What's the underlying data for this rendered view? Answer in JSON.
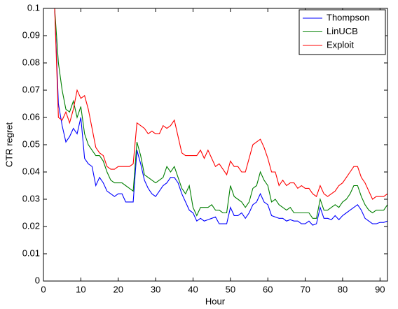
{
  "chart_data": {
    "type": "line",
    "xlabel": "Hour",
    "ylabel": "CTR regret",
    "x": [
      2,
      3,
      4,
      5,
      6,
      7,
      8,
      9,
      10,
      11,
      12,
      13,
      14,
      15,
      16,
      17,
      18,
      19,
      20,
      21,
      22,
      23,
      24,
      25,
      26,
      27,
      28,
      29,
      30,
      31,
      32,
      33,
      34,
      35,
      36,
      37,
      38,
      39,
      40,
      41,
      42,
      43,
      44,
      45,
      46,
      47,
      48,
      49,
      50,
      51,
      52,
      53,
      54,
      55,
      56,
      57,
      58,
      59,
      60,
      61,
      62,
      63,
      64,
      65,
      66,
      67,
      68,
      69,
      70,
      71,
      72,
      73,
      74,
      75,
      76,
      77,
      78,
      79,
      80,
      81,
      82,
      83,
      84,
      85,
      86,
      87,
      88,
      89,
      90,
      91,
      92
    ],
    "series": [
      {
        "name": "Thompson",
        "color": "#0000ff",
        "values": [
          0.12,
          0.1,
          0.065,
          0.057,
          0.051,
          0.053,
          0.056,
          0.054,
          0.06,
          0.045,
          0.043,
          0.042,
          0.035,
          0.038,
          0.036,
          0.033,
          0.032,
          0.031,
          0.032,
          0.032,
          0.029,
          0.029,
          0.029,
          0.048,
          0.043,
          0.037,
          0.034,
          0.032,
          0.031,
          0.033,
          0.035,
          0.036,
          0.038,
          0.038,
          0.036,
          0.032,
          0.029,
          0.026,
          0.025,
          0.022,
          0.023,
          0.022,
          0.0225,
          0.023,
          0.0235,
          0.021,
          0.021,
          0.021,
          0.027,
          0.024,
          0.024,
          0.025,
          0.023,
          0.025,
          0.028,
          0.029,
          0.032,
          0.029,
          0.028,
          0.024,
          0.0235,
          0.023,
          0.023,
          0.022,
          0.0225,
          0.022,
          0.022,
          0.021,
          0.021,
          0.022,
          0.0205,
          0.021,
          0.027,
          0.023,
          0.023,
          0.0225,
          0.024,
          0.0225,
          0.024,
          0.025,
          0.026,
          0.027,
          0.028,
          0.026,
          0.023,
          0.022,
          0.021,
          0.021,
          0.0215,
          0.0215,
          0.022
        ]
      },
      {
        "name": "LinUCB",
        "color": "#007f00",
        "values": [
          0.12,
          0.1,
          0.08,
          0.07,
          0.063,
          0.062,
          0.066,
          0.06,
          0.064,
          0.054,
          0.05,
          0.048,
          0.046,
          0.046,
          0.044,
          0.04,
          0.037,
          0.036,
          0.036,
          0.036,
          0.035,
          0.034,
          0.033,
          0.051,
          0.046,
          0.039,
          0.038,
          0.037,
          0.036,
          0.037,
          0.038,
          0.042,
          0.04,
          0.042,
          0.038,
          0.034,
          0.032,
          0.035,
          0.027,
          0.024,
          0.027,
          0.027,
          0.027,
          0.028,
          0.026,
          0.026,
          0.025,
          0.025,
          0.035,
          0.031,
          0.03,
          0.029,
          0.027,
          0.029,
          0.034,
          0.035,
          0.04,
          0.037,
          0.035,
          0.029,
          0.03,
          0.028,
          0.027,
          0.026,
          0.027,
          0.025,
          0.025,
          0.025,
          0.025,
          0.025,
          0.023,
          0.023,
          0.03,
          0.026,
          0.026,
          0.027,
          0.028,
          0.027,
          0.029,
          0.03,
          0.032,
          0.035,
          0.035,
          0.031,
          0.028,
          0.026,
          0.025,
          0.026,
          0.026,
          0.026,
          0.028
        ]
      },
      {
        "name": "Exploit",
        "color": "#ff0000",
        "values": [
          0.12,
          0.1,
          0.06,
          0.059,
          0.062,
          0.058,
          0.063,
          0.07,
          0.067,
          0.068,
          0.063,
          0.056,
          0.049,
          0.047,
          0.046,
          0.042,
          0.041,
          0.041,
          0.042,
          0.042,
          0.042,
          0.042,
          0.043,
          0.058,
          0.057,
          0.056,
          0.054,
          0.055,
          0.054,
          0.054,
          0.057,
          0.056,
          0.057,
          0.059,
          0.053,
          0.047,
          0.046,
          0.046,
          0.046,
          0.046,
          0.048,
          0.045,
          0.048,
          0.045,
          0.042,
          0.043,
          0.041,
          0.039,
          0.044,
          0.042,
          0.042,
          0.04,
          0.04,
          0.045,
          0.05,
          0.051,
          0.052,
          0.049,
          0.045,
          0.04,
          0.04,
          0.035,
          0.037,
          0.035,
          0.036,
          0.036,
          0.034,
          0.035,
          0.034,
          0.034,
          0.032,
          0.031,
          0.035,
          0.032,
          0.031,
          0.032,
          0.033,
          0.035,
          0.036,
          0.038,
          0.04,
          0.042,
          0.042,
          0.038,
          0.036,
          0.033,
          0.03,
          0.031,
          0.031,
          0.031,
          0.032
        ]
      }
    ],
    "xlim": [
      0,
      92
    ],
    "xticks": [
      0,
      10,
      20,
      30,
      40,
      50,
      60,
      70,
      80,
      90
    ],
    "ylim": [
      0,
      0.1
    ],
    "yticks": [
      0,
      0.01,
      0.02,
      0.03,
      0.04,
      0.05,
      0.06,
      0.07,
      0.08,
      0.09,
      0.1
    ],
    "legend": "upper right"
  }
}
